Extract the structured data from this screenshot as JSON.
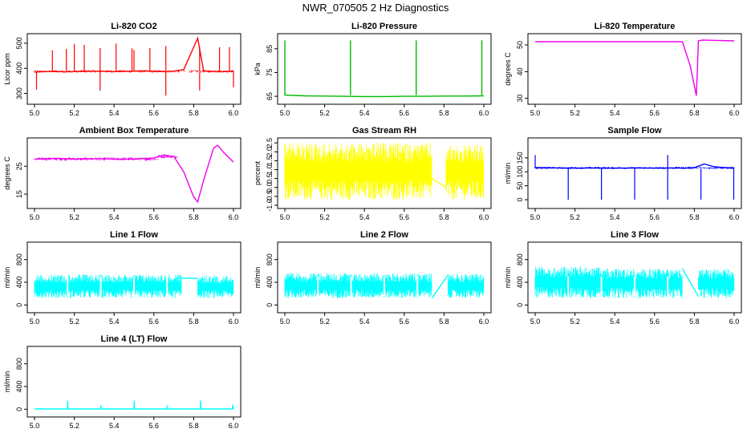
{
  "main_title": "NWR_070505  2 Hz Diagnostics",
  "chart_data": [
    {
      "type": "line",
      "title": "Li-820 CO2",
      "ylabel": "Licor ppm",
      "color": "#ff0000",
      "x_ticks": [
        "5.0",
        "5.2",
        "5.4",
        "5.6",
        "5.8",
        "6.0"
      ],
      "xlim": [
        5.0,
        6.0
      ],
      "ylim": [
        270,
        525
      ],
      "y_ticks": [
        {
          "v": 300,
          "label": "300"
        },
        {
          "v": 400,
          "label": "400"
        },
        {
          "v": 500,
          "label": "500"
        }
      ],
      "series": {
        "x": [
          5.0,
          5.05,
          5.1,
          5.15,
          5.2,
          5.25,
          5.3,
          5.35,
          5.4,
          5.45,
          5.5,
          5.55,
          5.6,
          5.65,
          5.7,
          5.75,
          5.82,
          5.85,
          5.9,
          5.95,
          6.0
        ],
        "y": [
          385,
          387,
          388,
          386,
          387,
          388,
          389,
          388,
          387,
          388,
          389,
          390,
          388,
          387,
          389,
          395,
          520,
          389,
          388,
          387,
          388
        ]
      }
    },
    {
      "type": "line",
      "title": "Li-820 Pressure",
      "ylabel": "kPa",
      "color": "#00bb00",
      "x_ticks": [
        "5.0",
        "5.2",
        "5.4",
        "5.6",
        "5.8",
        "6.0"
      ],
      "xlim": [
        5.0,
        6.0
      ],
      "ylim": [
        63,
        90
      ],
      "y_ticks": [
        {
          "v": 65,
          "label": "65"
        },
        {
          "v": 75,
          "label": "75"
        },
        {
          "v": 85,
          "label": "85"
        }
      ],
      "series": {
        "x": [
          5.0,
          5.1,
          5.2,
          5.3,
          5.4,
          5.5,
          5.6,
          5.7,
          5.8,
          5.9,
          6.0
        ],
        "y": [
          65.5,
          65.2,
          65.1,
          65.0,
          64.9,
          64.9,
          65.0,
          65.0,
          65.1,
          65.1,
          65.2
        ]
      }
    },
    {
      "type": "line",
      "title": "Li-820 Temperature",
      "ylabel": "degrees C",
      "color": "#ee00ee",
      "x_ticks": [
        "5.0",
        "5.2",
        "5.4",
        "5.6",
        "5.8",
        "6.0"
      ],
      "xlim": [
        5.0,
        6.0
      ],
      "ylim": [
        29,
        53
      ],
      "y_ticks": [
        {
          "v": 30,
          "label": "30"
        },
        {
          "v": 40,
          "label": "40"
        },
        {
          "v": 50,
          "label": "50"
        }
      ],
      "series": {
        "x": [
          5.0,
          5.2,
          5.4,
          5.6,
          5.74,
          5.78,
          5.81,
          5.815,
          5.82,
          5.84,
          5.9,
          6.0
        ],
        "y": [
          51.2,
          51.2,
          51.2,
          51.2,
          51.2,
          42,
          31,
          40,
          51.5,
          51.8,
          51.7,
          51.5
        ]
      }
    },
    {
      "type": "line",
      "title": "Ambient Box Temperature",
      "ylabel": "degrees C",
      "color": "#ee00ee",
      "x_ticks": [
        "5.0",
        "5.2",
        "5.4",
        "5.6",
        "5.8",
        "6.0"
      ],
      "xlim": [
        5.0,
        6.0
      ],
      "ylim": [
        11,
        34
      ],
      "y_ticks": [
        {
          "v": 15,
          "label": "15"
        },
        {
          "v": 25,
          "label": "25"
        }
      ],
      "series": {
        "x": [
          5.0,
          5.1,
          5.2,
          5.3,
          5.4,
          5.5,
          5.6,
          5.65,
          5.7,
          5.75,
          5.8,
          5.82,
          5.85,
          5.9,
          5.92,
          5.95,
          6.0
        ],
        "y": [
          27.5,
          27.8,
          27.6,
          27.7,
          27.6,
          27.5,
          28,
          29,
          28.5,
          23,
          14,
          12.2,
          20,
          31.5,
          32.5,
          30,
          26.5
        ]
      }
    },
    {
      "type": "line",
      "title": "Gas Stream RH",
      "ylabel": "percent",
      "color": "#ffff00",
      "x_ticks": [
        "5.0",
        "5.2",
        "5.4",
        "5.6",
        "5.8",
        "6.0"
      ],
      "xlim": [
        5.0,
        6.0
      ],
      "ylim": [
        -1,
        2.6
      ],
      "y_ticks": [
        {
          "v": -1,
          "label": "-1.0"
        },
        {
          "v": -0.5,
          "label": "-0.5"
        },
        {
          "v": 0,
          "label": "0.0"
        },
        {
          "v": 0.5,
          "label": "0.5"
        },
        {
          "v": 1,
          "label": "1.0"
        },
        {
          "v": 1.5,
          "label": "1.5"
        },
        {
          "v": 2,
          "label": "2.0"
        },
        {
          "v": 2.5,
          "label": "2.5"
        }
      ],
      "bands": [
        {
          "x0": 5.0,
          "x1": 5.74,
          "lo": -0.7,
          "hi": 2.5
        },
        {
          "x0": 5.81,
          "x1": 6.0,
          "lo": -0.7,
          "hi": 2.4
        }
      ],
      "series": {
        "x": [
          5.74,
          5.81
        ],
        "y": [
          0.5,
          0.0
        ]
      }
    },
    {
      "type": "line",
      "title": "Sample Flow",
      "ylabel": "ml/min",
      "color": "#0000ff",
      "x_ticks": [
        "5.0",
        "5.2",
        "5.4",
        "5.6",
        "5.8",
        "6.0"
      ],
      "xlim": [
        5.0,
        6.0
      ],
      "ylim": [
        -20,
        210
      ],
      "y_ticks": [
        {
          "v": 0,
          "label": "0"
        },
        {
          "v": 50,
          "label": "50"
        },
        {
          "v": 100,
          "label": "100"
        },
        {
          "v": 150,
          "label": "150"
        }
      ],
      "series": {
        "x": [
          5.0,
          5.1,
          5.2,
          5.3,
          5.4,
          5.5,
          5.6,
          5.7,
          5.75,
          5.8,
          5.85,
          5.9,
          5.95,
          6.0
        ],
        "y": [
          115,
          114,
          113,
          114,
          113,
          114,
          113,
          114,
          113,
          115,
          128,
          118,
          115,
          113
        ]
      }
    },
    {
      "type": "line",
      "title": "Line 1 Flow",
      "ylabel": "ml/min",
      "color": "#00ffff",
      "x_ticks": [
        "5.0",
        "5.2",
        "5.4",
        "5.6",
        "5.8",
        "6.0"
      ],
      "xlim": [
        5.0,
        6.0
      ],
      "ylim": [
        -80,
        1050
      ],
      "y_ticks": [
        {
          "v": 0,
          "label": "0"
        },
        {
          "v": 400,
          "label": "400"
        },
        {
          "v": 800,
          "label": "800"
        }
      ],
      "bands": [
        {
          "x0": 5.0,
          "x1": 5.74,
          "lo": 120,
          "hi": 540
        },
        {
          "x0": 5.82,
          "x1": 6.0,
          "lo": 120,
          "hi": 520
        }
      ],
      "series": {
        "x": [
          5.74,
          5.82
        ],
        "y": [
          470,
          470
        ]
      }
    },
    {
      "type": "line",
      "title": "Line 2 Flow",
      "ylabel": "ml/min",
      "color": "#00ffff",
      "x_ticks": [
        "5.0",
        "5.2",
        "5.4",
        "5.6",
        "5.8",
        "6.0"
      ],
      "xlim": [
        5.0,
        6.0
      ],
      "ylim": [
        -80,
        1050
      ],
      "y_ticks": [
        {
          "v": 0,
          "label": "0"
        },
        {
          "v": 400,
          "label": "400"
        },
        {
          "v": 800,
          "label": "800"
        }
      ],
      "bands": [
        {
          "x0": 5.0,
          "x1": 5.74,
          "lo": 120,
          "hi": 560
        },
        {
          "x0": 5.82,
          "x1": 6.0,
          "lo": 120,
          "hi": 550
        }
      ],
      "series": {
        "x": [
          5.74,
          5.82
        ],
        "y": [
          120,
          530
        ]
      }
    },
    {
      "type": "line",
      "title": "Line 3 Flow",
      "ylabel": "ml/min",
      "color": "#00ffff",
      "x_ticks": [
        "5.0",
        "5.2",
        "5.4",
        "5.6",
        "5.8",
        "6.0"
      ],
      "xlim": [
        5.0,
        6.0
      ],
      "ylim": [
        -80,
        1050
      ],
      "y_ticks": [
        {
          "v": 0,
          "label": "0"
        },
        {
          "v": 400,
          "label": "400"
        },
        {
          "v": 800,
          "label": "800"
        }
      ],
      "bands": [
        {
          "x0": 5.0,
          "x1": 5.33,
          "lo": 120,
          "hi": 680
        },
        {
          "x0": 5.33,
          "x1": 5.74,
          "lo": 120,
          "hi": 640
        },
        {
          "x0": 5.82,
          "x1": 6.0,
          "lo": 120,
          "hi": 630
        }
      ],
      "series": {
        "x": [
          5.74,
          5.82
        ],
        "y": [
          640,
          150
        ]
      }
    },
    {
      "type": "line",
      "title": "Line 4 (LT) Flow",
      "ylabel": "ml/min",
      "color": "#00ffff",
      "x_ticks": [
        "5.0",
        "5.2",
        "5.4",
        "5.6",
        "5.8",
        "6.0"
      ],
      "xlim": [
        5.0,
        6.0
      ],
      "ylim": [
        -80,
        1050
      ],
      "y_ticks": [
        {
          "v": 0,
          "label": "0"
        },
        {
          "v": 400,
          "label": "400"
        },
        {
          "v": 800,
          "label": "800"
        }
      ],
      "series": {
        "x": [
          5.0,
          5.166,
          5.167,
          5.168,
          5.333,
          5.334,
          5.335,
          5.5,
          5.501,
          5.502,
          5.666,
          5.667,
          5.668,
          5.833,
          5.834,
          5.835,
          5.995,
          5.996,
          6.0
        ],
        "y": [
          5,
          5,
          150,
          5,
          5,
          70,
          5,
          5,
          150,
          5,
          5,
          70,
          5,
          5,
          150,
          5,
          5,
          80,
          5
        ]
      }
    }
  ]
}
